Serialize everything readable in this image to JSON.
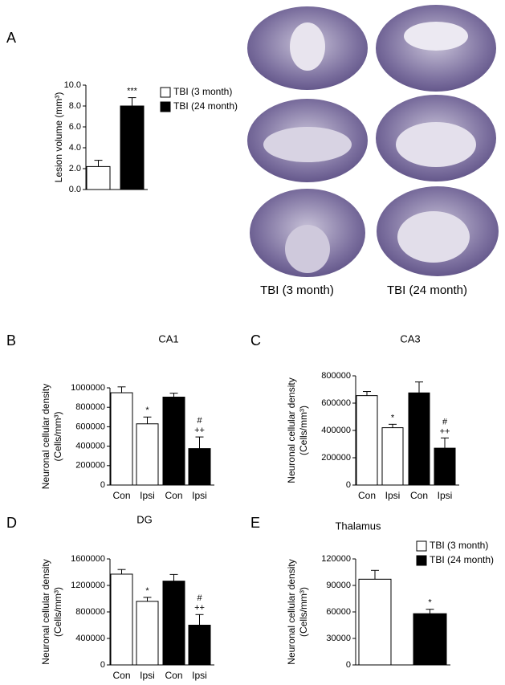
{
  "image_captions": [
    "TBI (3 month)",
    "TBI (24 month)"
  ],
  "chart_data": [
    {
      "type": "bar",
      "panel": "A",
      "ylabel": [
        "Lesion volume (mm³)"
      ],
      "legend": [
        "TBI (3 month)",
        "TBI (24 month)"
      ],
      "values": [
        2.2,
        8.0
      ],
      "errors": [
        0.6,
        0.8
      ],
      "colors": [
        "#ffffff",
        "#000000"
      ],
      "annotations": [
        null,
        [
          "***"
        ]
      ],
      "ylim": [
        0,
        10
      ],
      "yticks": [
        {
          "value": 0,
          "label": "0.0"
        },
        {
          "value": 2,
          "label": "2.0"
        },
        {
          "value": 4,
          "label": "4.0"
        },
        {
          "value": 6,
          "label": "6.0"
        },
        {
          "value": 8,
          "label": "8.0"
        },
        {
          "value": 10,
          "label": "10.0"
        }
      ]
    },
    {
      "type": "bar",
      "panel": "B",
      "title": "CA1",
      "ylabel": [
        "Neuronal cellular density",
        "(Cells/mm³)"
      ],
      "categories": [
        "Con",
        "Ipsi",
        "Con",
        "Ipsi"
      ],
      "values": [
        950000,
        630000,
        905000,
        375000
      ],
      "errors": [
        60000,
        70000,
        40000,
        120000
      ],
      "colors": [
        "#ffffff",
        "#ffffff",
        "#000000",
        "#000000"
      ],
      "annotations": [
        null,
        [
          "*"
        ],
        null,
        [
          "#",
          "++"
        ]
      ],
      "ylim": [
        0,
        1000000
      ],
      "yticks": [
        0,
        200000,
        400000,
        600000,
        800000,
        1000000
      ]
    },
    {
      "type": "bar",
      "panel": "C",
      "title": "CA3",
      "ylabel": [
        "Neuronal cellular density",
        "(Cells/mm³)"
      ],
      "categories": [
        "Con",
        "Ipsi",
        "Con",
        "Ipsi"
      ],
      "values": [
        655000,
        420000,
        675000,
        270000
      ],
      "errors": [
        30000,
        25000,
        80000,
        75000
      ],
      "colors": [
        "#ffffff",
        "#ffffff",
        "#000000",
        "#000000"
      ],
      "annotations": [
        null,
        [
          "*"
        ],
        null,
        [
          "#",
          "++"
        ]
      ],
      "ylim": [
        0,
        800000
      ],
      "yticks": [
        0,
        200000,
        400000,
        600000,
        800000
      ]
    },
    {
      "type": "bar",
      "panel": "D",
      "title": "DG",
      "ylabel": [
        "Neuronal cellular density",
        "(Cells/mm³)"
      ],
      "categories": [
        "Con",
        "Ipsi",
        "Con",
        "Ipsi"
      ],
      "values": [
        1370000,
        960000,
        1265000,
        600000
      ],
      "errors": [
        70000,
        60000,
        100000,
        160000
      ],
      "colors": [
        "#ffffff",
        "#ffffff",
        "#000000",
        "#000000"
      ],
      "annotations": [
        null,
        [
          "*"
        ],
        null,
        [
          "#",
          "++"
        ]
      ],
      "ylim": [
        0,
        1600000
      ],
      "yticks": [
        0,
        400000,
        800000,
        1200000,
        1600000
      ]
    },
    {
      "type": "bar",
      "panel": "E",
      "title": "Thalamus",
      "ylabel": [
        "Neuronal cellular density",
        "(Cells/mm³)"
      ],
      "legend": [
        "TBI (3 month)",
        "TBI (24 month)"
      ],
      "values": [
        97000,
        58000
      ],
      "errors": [
        10000,
        5000
      ],
      "colors": [
        "#ffffff",
        "#000000"
      ],
      "annotations": [
        null,
        [
          "*"
        ]
      ],
      "ylim": [
        0,
        120000
      ],
      "yticks": [
        0,
        30000,
        60000,
        90000,
        120000
      ]
    }
  ]
}
